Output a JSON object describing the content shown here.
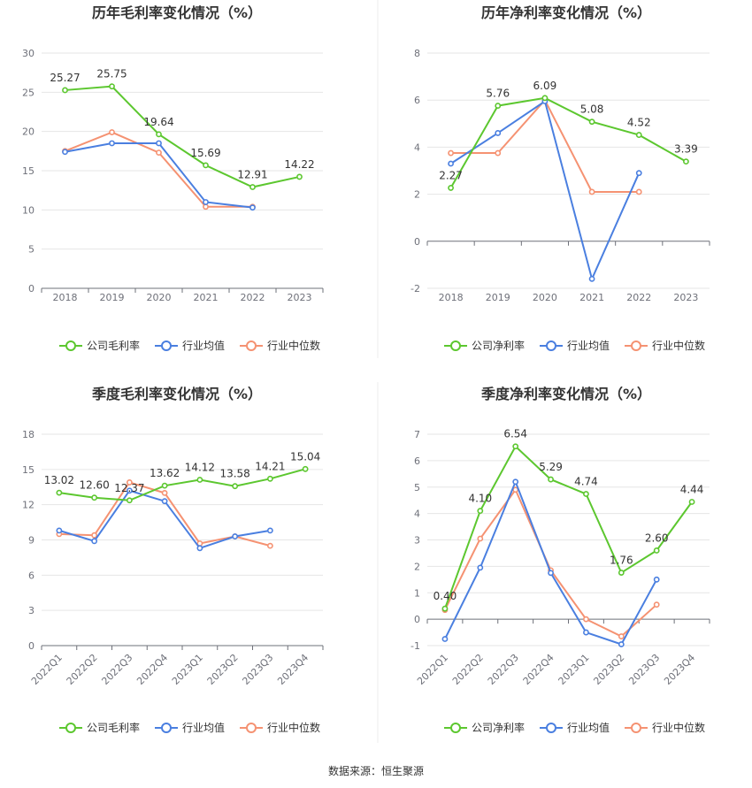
{
  "source_text": "数据来源：恒生聚源",
  "colors": {
    "company": "#5cc72f",
    "avg": "#4a7fe0",
    "median": "#f59272"
  },
  "chart_data": [
    {
      "type": "line",
      "title": "历年毛利率变化情况（%）",
      "categories": [
        "2018",
        "2019",
        "2020",
        "2021",
        "2022",
        "2023"
      ],
      "ylim": [
        0,
        30
      ],
      "yticks": [
        0,
        5,
        10,
        15,
        20,
        25,
        30
      ],
      "rotate_x": false,
      "series": [
        {
          "name": "公司毛利率",
          "key": "company",
          "values": [
            25.27,
            25.75,
            19.64,
            15.69,
            12.91,
            14.22
          ],
          "labels": [
            "25.27",
            "25.75",
            "19.64",
            "15.69",
            "12.91",
            "14.22"
          ]
        },
        {
          "name": "行业均值",
          "key": "avg",
          "values": [
            17.4,
            18.5,
            18.5,
            11.0,
            10.3,
            null
          ]
        },
        {
          "name": "行业中位数",
          "key": "median",
          "values": [
            17.5,
            19.9,
            17.3,
            10.4,
            10.4,
            null
          ]
        }
      ]
    },
    {
      "type": "line",
      "title": "历年净利率变化情况（%）",
      "categories": [
        "2018",
        "2019",
        "2020",
        "2021",
        "2022",
        "2023"
      ],
      "ylim": [
        -2,
        8
      ],
      "yticks": [
        -2,
        0,
        2,
        4,
        6,
        8
      ],
      "rotate_x": false,
      "series": [
        {
          "name": "公司净利率",
          "key": "company",
          "values": [
            2.27,
            5.76,
            6.09,
            5.08,
            4.52,
            3.39
          ],
          "labels": [
            "2.27",
            "5.76",
            "6.09",
            "5.08",
            "4.52",
            "3.39"
          ]
        },
        {
          "name": "行业均值",
          "key": "avg",
          "values": [
            3.3,
            4.6,
            5.95,
            -1.6,
            2.9,
            null
          ]
        },
        {
          "name": "行业中位数",
          "key": "median",
          "values": [
            3.75,
            3.75,
            6.0,
            2.1,
            2.1,
            null
          ]
        }
      ]
    },
    {
      "type": "line",
      "title": "季度毛利率变化情况（%）",
      "categories": [
        "2022Q1",
        "2022Q2",
        "2022Q3",
        "2022Q4",
        "2023Q1",
        "2023Q2",
        "2023Q3",
        "2023Q4"
      ],
      "ylim": [
        0,
        18
      ],
      "yticks": [
        0,
        3,
        6,
        9,
        12,
        15,
        18
      ],
      "rotate_x": true,
      "series": [
        {
          "name": "公司毛利率",
          "key": "company",
          "values": [
            13.02,
            12.6,
            12.37,
            13.62,
            14.12,
            13.58,
            14.21,
            15.04
          ],
          "labels": [
            "13.02",
            "12.60",
            "12.37",
            "13.62",
            "14.12",
            "13.58",
            "14.21",
            "15.04"
          ]
        },
        {
          "name": "行业均值",
          "key": "avg",
          "values": [
            9.8,
            8.9,
            13.2,
            12.3,
            8.3,
            9.3,
            9.8,
            null
          ]
        },
        {
          "name": "行业中位数",
          "key": "median",
          "values": [
            9.5,
            9.4,
            13.9,
            13.0,
            8.7,
            9.3,
            8.5,
            null
          ]
        }
      ]
    },
    {
      "type": "line",
      "title": "季度净利率变化情况（%）",
      "categories": [
        "2022Q1",
        "2022Q2",
        "2022Q3",
        "2022Q4",
        "2023Q1",
        "2023Q2",
        "2023Q3",
        "2023Q4"
      ],
      "ylim": [
        -1,
        7
      ],
      "yticks": [
        -1,
        0,
        1,
        2,
        3,
        4,
        5,
        6,
        7
      ],
      "rotate_x": true,
      "series": [
        {
          "name": "公司净利率",
          "key": "company",
          "values": [
            0.4,
            4.1,
            6.54,
            5.29,
            4.74,
            1.76,
            2.6,
            4.44
          ],
          "labels": [
            "0.40",
            "4.10",
            "6.54",
            "5.29",
            "4.74",
            "1.76",
            "2.60",
            "4.44"
          ]
        },
        {
          "name": "行业均值",
          "key": "avg",
          "values": [
            -0.75,
            1.95,
            5.2,
            1.75,
            -0.5,
            -0.95,
            1.5,
            null
          ]
        },
        {
          "name": "行业中位数",
          "key": "median",
          "values": [
            0.35,
            3.05,
            4.9,
            1.85,
            0.0,
            -0.65,
            0.55,
            null
          ]
        }
      ]
    }
  ]
}
